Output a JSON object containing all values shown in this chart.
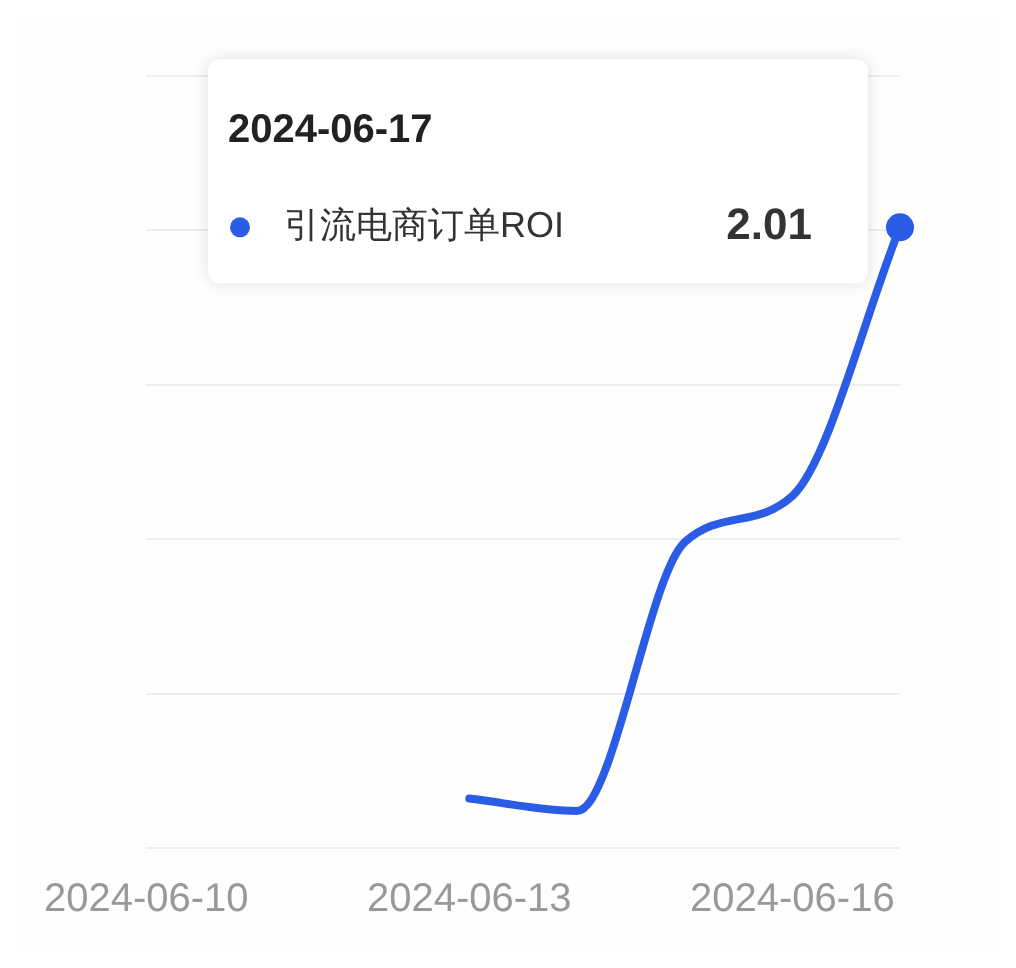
{
  "chart_data": {
    "type": "line",
    "categories": [
      "2024-06-10",
      null,
      null,
      "2024-06-13",
      null,
      null,
      "2024-06-16",
      null
    ],
    "series": [
      {
        "name": "引流电商订单ROI",
        "color": "#2b5ce6",
        "values": [
          null,
          null,
          null,
          0.16,
          0.12,
          0.99,
          1.14,
          2.01
        ],
        "value_labels": [
          null,
          null,
          null,
          null,
          null,
          null,
          null,
          "2.01"
        ]
      }
    ],
    "annotations": [
      "2024-06-17"
    ],
    "ylim": [
      0,
      2.5
    ],
    "yticks": [
      {
        "value": 0,
        "label": null
      },
      {
        "value": 0.5,
        "label": null
      },
      {
        "value": 1,
        "label": null
      },
      {
        "value": 1.5,
        "label": null
      },
      {
        "value": 2,
        "label": null
      },
      {
        "value": 2.5,
        "label": null
      }
    ],
    "tick_labels": "x",
    "legend": "top left",
    "grid": "y",
    "marker": "none"
  }
}
